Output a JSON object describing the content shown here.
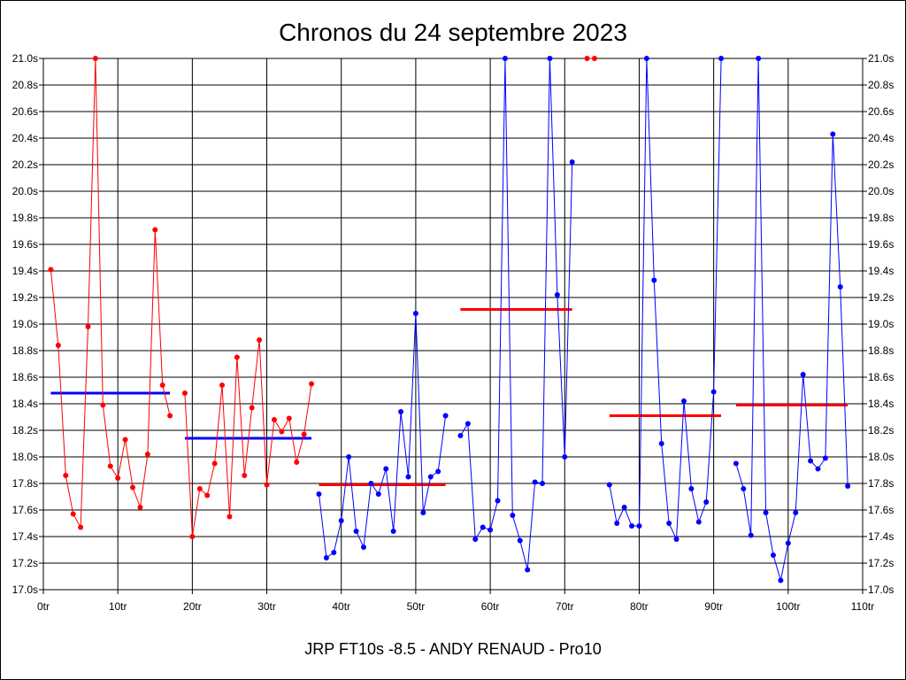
{
  "chart_data": {
    "type": "line",
    "title": "Chronos du 24 septembre 2023",
    "subtitle": "JRP FT10s -8.5 - ANDY RENAUD - Pro10",
    "ylim": [
      17.0,
      21.0
    ],
    "xlim": [
      0,
      110
    ],
    "y_ticks": [
      "17.0s",
      "17.2s",
      "17.4s",
      "17.6s",
      "17.8s",
      "18.0s",
      "18.2s",
      "18.4s",
      "18.6s",
      "18.8s",
      "19.0s",
      "19.2s",
      "19.4s",
      "19.6s",
      "19.8s",
      "20.0s",
      "20.2s",
      "20.4s",
      "20.6s",
      "20.8s",
      "21.0s"
    ],
    "x_ticks": [
      "0tr",
      "10tr",
      "20tr",
      "30tr",
      "40tr",
      "50tr",
      "60tr",
      "70tr",
      "80tr",
      "90tr",
      "100tr",
      "110tr"
    ],
    "grid": true,
    "colors": {
      "red": "#ff0000",
      "blue": "#0000ff",
      "grid": "#000000"
    },
    "series": [
      {
        "color": "#ff0000",
        "x": [
          1,
          2,
          3,
          4,
          5,
          6,
          7,
          8,
          9,
          10,
          11,
          12,
          13,
          14,
          15,
          16,
          17
        ],
        "y": [
          19.41,
          18.84,
          17.86,
          17.57,
          17.47,
          18.98,
          21.0,
          18.39,
          17.93,
          17.84,
          18.13,
          17.77,
          17.62,
          18.02,
          19.71,
          18.54,
          18.31
        ]
      },
      {
        "color": "#ff0000",
        "x": [
          19,
          20,
          21,
          22,
          23,
          24,
          25,
          26,
          27,
          28,
          29,
          30,
          31,
          32,
          33,
          34,
          35,
          36
        ],
        "y": [
          18.48,
          17.4,
          17.76,
          17.71,
          17.95,
          18.54,
          17.55,
          18.75,
          17.86,
          18.37,
          18.88,
          17.79,
          18.28,
          18.19,
          18.29,
          17.96,
          18.17,
          18.55
        ]
      },
      {
        "color": "#0000ff",
        "x": [
          37,
          38,
          39,
          40,
          41,
          42,
          43,
          44,
          45,
          46,
          47,
          48,
          49,
          50,
          51,
          52,
          53,
          54
        ],
        "y": [
          17.72,
          17.24,
          17.28,
          17.52,
          18.0,
          17.44,
          17.32,
          17.8,
          17.72,
          17.91,
          17.44,
          18.34,
          17.85,
          19.08,
          17.58,
          17.85,
          17.89,
          18.31
        ]
      },
      {
        "color": "#0000ff",
        "x": [
          56,
          57,
          58,
          59,
          60,
          61,
          62,
          63,
          64,
          65,
          66,
          67,
          68,
          69,
          70,
          71
        ],
        "y": [
          18.16,
          18.25,
          17.38,
          17.47,
          17.45,
          17.67,
          21.0,
          17.56,
          17.37,
          17.15,
          17.81,
          17.8,
          21.0,
          19.22,
          18.0,
          20.22
        ]
      },
      {
        "color": "#ff0000",
        "x": [
          73,
          74
        ],
        "y": [
          21.0,
          21.0
        ]
      },
      {
        "color": "#0000ff",
        "x": [
          76,
          77,
          78,
          79,
          80,
          81,
          82,
          83,
          84,
          85,
          86,
          87,
          88,
          89,
          90,
          91
        ],
        "y": [
          17.79,
          17.5,
          17.62,
          17.48,
          17.48,
          21.0,
          19.33,
          18.1,
          17.5,
          17.38,
          18.42,
          17.76,
          17.51,
          17.66,
          18.49,
          21.0
        ]
      },
      {
        "color": "#0000ff",
        "x": [
          93,
          94,
          95,
          96,
          97,
          98,
          99,
          100,
          101,
          102,
          103,
          104,
          105,
          106,
          107,
          108
        ],
        "y": [
          17.95,
          17.76,
          17.41,
          21.0,
          17.58,
          17.26,
          17.07,
          17.35,
          17.58,
          18.62,
          17.97,
          17.91,
          17.99,
          20.43,
          19.28,
          17.78
        ]
      }
    ],
    "averages": [
      {
        "color": "#0000ff",
        "x": [
          1,
          17
        ],
        "y": 18.48
      },
      {
        "color": "#0000ff",
        "x": [
          19,
          36
        ],
        "y": 18.14
      },
      {
        "color": "#ff0000",
        "x": [
          37,
          54
        ],
        "y": 17.79
      },
      {
        "color": "#ff0000",
        "x": [
          56,
          71
        ],
        "y": 19.11
      },
      {
        "color": "#ff0000",
        "x": [
          76,
          91
        ],
        "y": 18.31
      },
      {
        "color": "#ff0000",
        "x": [
          93,
          108
        ],
        "y": 18.39
      }
    ]
  }
}
